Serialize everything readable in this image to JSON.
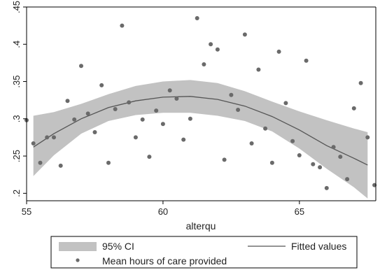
{
  "chart_data": {
    "type": "scatter",
    "xlabel": "alterqu",
    "ylabel": "",
    "xlim": [
      55,
      67.8
    ],
    "ylim": [
      0.19,
      0.45
    ],
    "x_ticks": [
      {
        "value": 55,
        "label": "55"
      },
      {
        "value": 60,
        "label": "60"
      },
      {
        "value": 65,
        "label": "65"
      }
    ],
    "y_ticks": [
      {
        "value": 0.2,
        "label": ".2"
      },
      {
        "value": 0.25,
        "label": ".25"
      },
      {
        "value": 0.3,
        "label": ".3"
      },
      {
        "value": 0.35,
        "label": ".35"
      },
      {
        "value": 0.4,
        "label": ".4"
      },
      {
        "value": 0.45,
        "label": ".45"
      }
    ],
    "grid": false,
    "legend_position": "bottom",
    "colors": {
      "points": "#6a6a6a",
      "fit_line": "#555555",
      "ci_band": "#c2c2c2",
      "frame": "#000000"
    },
    "series": [
      {
        "name": "Mean hours of care provided",
        "kind": "scatter",
        "points": [
          [
            55.0,
            0.298
          ],
          [
            55.25,
            0.267
          ],
          [
            55.5,
            0.241
          ],
          [
            55.75,
            0.275
          ],
          [
            56.0,
            0.275
          ],
          [
            56.25,
            0.237
          ],
          [
            56.5,
            0.324
          ],
          [
            56.75,
            0.299
          ],
          [
            57.0,
            0.371
          ],
          [
            57.25,
            0.307
          ],
          [
            57.5,
            0.282
          ],
          [
            57.75,
            0.345
          ],
          [
            58.0,
            0.241
          ],
          [
            58.25,
            0.313
          ],
          [
            58.5,
            0.425
          ],
          [
            58.75,
            0.322
          ],
          [
            59.0,
            0.275
          ],
          [
            59.25,
            0.299
          ],
          [
            59.5,
            0.249
          ],
          [
            59.75,
            0.311
          ],
          [
            60.0,
            0.293
          ],
          [
            60.25,
            0.338
          ],
          [
            60.5,
            0.327
          ],
          [
            60.75,
            0.272
          ],
          [
            61.0,
            0.3
          ],
          [
            61.25,
            0.435
          ],
          [
            61.5,
            0.373
          ],
          [
            61.75,
            0.4
          ],
          [
            62.0,
            0.393
          ],
          [
            62.25,
            0.245
          ],
          [
            62.5,
            0.332
          ],
          [
            62.75,
            0.312
          ],
          [
            63.0,
            0.413
          ],
          [
            63.25,
            0.267
          ],
          [
            63.5,
            0.366
          ],
          [
            63.75,
            0.287
          ],
          [
            64.0,
            0.241
          ],
          [
            64.25,
            0.39
          ],
          [
            64.5,
            0.321
          ],
          [
            64.75,
            0.27
          ],
          [
            65.0,
            0.251
          ],
          [
            65.25,
            0.378
          ],
          [
            65.5,
            0.239
          ],
          [
            65.75,
            0.235
          ],
          [
            66.0,
            0.207
          ],
          [
            66.25,
            0.262
          ],
          [
            66.5,
            0.249
          ],
          [
            66.75,
            0.219
          ],
          [
            67.0,
            0.314
          ],
          [
            67.25,
            0.348
          ],
          [
            67.5,
            0.275
          ],
          [
            67.75,
            0.211
          ]
        ]
      },
      {
        "name": "Fitted values",
        "kind": "line",
        "points": [
          [
            55.25,
            0.262
          ],
          [
            56.0,
            0.28
          ],
          [
            57.0,
            0.3
          ],
          [
            58.0,
            0.315
          ],
          [
            59.0,
            0.324
          ],
          [
            60.0,
            0.329
          ],
          [
            61.0,
            0.33
          ],
          [
            62.0,
            0.326
          ],
          [
            63.0,
            0.317
          ],
          [
            64.0,
            0.303
          ],
          [
            65.0,
            0.285
          ],
          [
            66.0,
            0.264
          ],
          [
            67.0,
            0.247
          ],
          [
            67.5,
            0.238
          ]
        ]
      },
      {
        "name": "95% CI",
        "kind": "band",
        "upper": [
          [
            55.25,
            0.304
          ],
          [
            56.0,
            0.309
          ],
          [
            57.0,
            0.32
          ],
          [
            58.0,
            0.333
          ],
          [
            59.0,
            0.344
          ],
          [
            60.0,
            0.35
          ],
          [
            61.0,
            0.352
          ],
          [
            62.0,
            0.348
          ],
          [
            63.0,
            0.337
          ],
          [
            64.0,
            0.323
          ],
          [
            65.0,
            0.31
          ],
          [
            66.0,
            0.298
          ],
          [
            67.0,
            0.287
          ],
          [
            67.5,
            0.282
          ]
        ],
        "lower": [
          [
            55.25,
            0.223
          ],
          [
            56.0,
            0.251
          ],
          [
            57.0,
            0.28
          ],
          [
            58.0,
            0.297
          ],
          [
            59.0,
            0.305
          ],
          [
            60.0,
            0.308
          ],
          [
            61.0,
            0.308
          ],
          [
            62.0,
            0.304
          ],
          [
            63.0,
            0.297
          ],
          [
            64.0,
            0.283
          ],
          [
            65.0,
            0.26
          ],
          [
            66.0,
            0.233
          ],
          [
            67.0,
            0.208
          ],
          [
            67.5,
            0.193
          ]
        ]
      }
    ]
  },
  "legend": {
    "ci_label": "95% CI",
    "fit_label": "Fitted values",
    "points_label": "Mean hours of care provided"
  }
}
